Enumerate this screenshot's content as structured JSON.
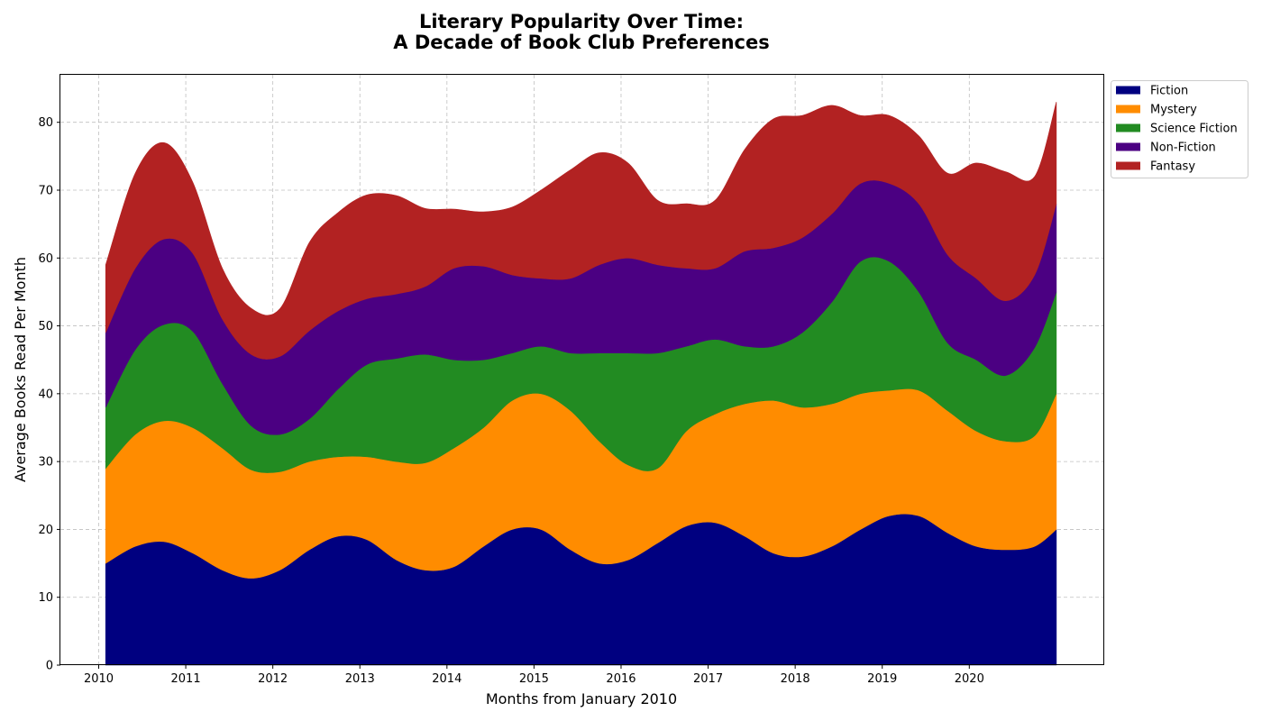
{
  "chart_data": {
    "type": "area",
    "stacked": true,
    "smooth": true,
    "title": [
      "Literary Popularity Over Time:",
      "A Decade of Book Club Preferences"
    ],
    "xlabel": "Months from January 2010",
    "ylabel": "Average Books Read Per Month",
    "x_tick_labels": [
      "2010",
      "2011",
      "2012",
      "2013",
      "2014",
      "2015",
      "2016",
      "2017",
      "2018",
      "2019",
      "2020"
    ],
    "y_ticks": [
      0,
      10,
      20,
      30,
      40,
      50,
      60,
      70,
      80
    ],
    "xlim": [
      2009.56,
      2021.55
    ],
    "ylim": [
      0,
      87
    ],
    "grid": true,
    "legend_position": "outside-upper-right",
    "x": [
      2010.08,
      2010.42,
      2010.75,
      2011.08,
      2011.42,
      2011.75,
      2012.08,
      2012.42,
      2012.75,
      2013.08,
      2013.42,
      2013.75,
      2014.08,
      2014.42,
      2014.75,
      2015.08,
      2015.42,
      2015.75,
      2016.08,
      2016.42,
      2016.75,
      2017.08,
      2017.42,
      2017.75,
      2018.08,
      2018.42,
      2018.75,
      2019.08,
      2019.42,
      2019.75,
      2020.08,
      2020.42,
      2020.75,
      2021.0
    ],
    "series": [
      {
        "name": "Fiction",
        "color": "#000080",
        "values": [
          15,
          17.5,
          18.2,
          16.5,
          14,
          12.8,
          14,
          17,
          19,
          18.5,
          15.5,
          14,
          14.5,
          17.5,
          20,
          20,
          17,
          15,
          15.5,
          18,
          20.5,
          21,
          19,
          16.5,
          16,
          17.5,
          20,
          22,
          22,
          19.5,
          17.5,
          17,
          17.5,
          20
        ]
      },
      {
        "name": "Mystery",
        "color": "#FF8C00",
        "values": [
          14,
          16.5,
          17.8,
          18.5,
          18,
          16,
          14.5,
          13,
          11.7,
          12.2,
          14.5,
          15.8,
          17.5,
          17.5,
          19,
          20,
          20.5,
          18,
          14,
          11,
          14,
          16,
          19.5,
          22.5,
          22,
          21,
          20,
          18.5,
          18.5,
          18,
          17,
          16,
          16.3,
          20
        ]
      },
      {
        "name": "Science Fiction",
        "color": "#228B22",
        "values": [
          9,
          12.5,
          14.2,
          14.2,
          9.5,
          6.5,
          5.5,
          6.3,
          10,
          13.6,
          15.2,
          16,
          13,
          10,
          7,
          7,
          8.5,
          13,
          16.5,
          17,
          12.5,
          11,
          8.5,
          8,
          11,
          15,
          19.5,
          19,
          14.5,
          10,
          10.5,
          9.7,
          13,
          15
        ]
      },
      {
        "name": "Non-Fiction",
        "color": "#4B0082",
        "values": [
          11,
          12,
          12.6,
          11.5,
          9.5,
          10.5,
          11.5,
          13,
          11.5,
          9.7,
          9.5,
          10,
          13.5,
          13.8,
          11.5,
          10,
          11,
          13,
          14,
          13,
          11.5,
          10.5,
          14,
          14.5,
          14,
          13,
          11.5,
          11.5,
          13,
          13,
          12,
          11,
          10.7,
          13
        ]
      },
      {
        "name": "Fantasy",
        "color": "#B22222",
        "values": [
          10,
          14,
          14.2,
          10.5,
          7.5,
          6.8,
          7,
          13,
          14.5,
          15.3,
          14.5,
          11.5,
          8.7,
          8,
          10,
          13,
          16,
          16.5,
          14,
          9.5,
          9.5,
          10,
          15,
          19,
          18,
          16,
          10,
          10,
          10,
          12,
          17,
          19,
          14.5,
          15
        ]
      }
    ]
  }
}
